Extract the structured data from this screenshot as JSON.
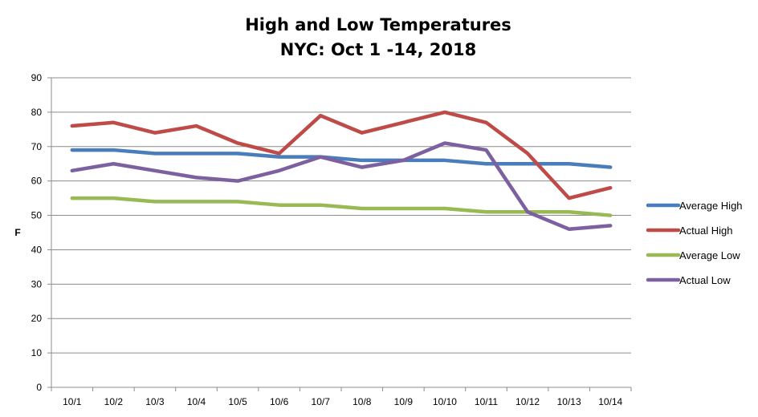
{
  "chart_data": {
    "type": "line",
    "title": "High and Low Temperatures",
    "subtitle": "NYC: Oct 1 -14, 2018",
    "xlabel": "",
    "ylabel": "F",
    "ylim": [
      0,
      90
    ],
    "yticks": [
      0,
      10,
      20,
      30,
      40,
      50,
      60,
      70,
      80,
      90
    ],
    "grid": true,
    "legend_position": "right",
    "categories": [
      "10/1",
      "10/2",
      "10/3",
      "10/4",
      "10/5",
      "10/6",
      "10/7",
      "10/8",
      "10/9",
      "10/10",
      "10/11",
      "10/12",
      "10/13",
      "10/14"
    ],
    "series": [
      {
        "name": "Average High",
        "color": "#4a7ebb",
        "values": [
          69,
          69,
          68,
          68,
          68,
          67,
          67,
          66,
          66,
          66,
          65,
          65,
          65,
          64
        ]
      },
      {
        "name": "Actual High",
        "color": "#be4b48",
        "values": [
          76,
          77,
          74,
          76,
          71,
          68,
          79,
          74,
          77,
          80,
          77,
          68,
          55,
          58
        ]
      },
      {
        "name": "Average Low",
        "color": "#98b954",
        "values": [
          55,
          55,
          54,
          54,
          54,
          53,
          53,
          52,
          52,
          52,
          51,
          51,
          51,
          50
        ]
      },
      {
        "name": "Actual Low",
        "color": "#7d60a0",
        "values": [
          63,
          65,
          63,
          61,
          60,
          63,
          67,
          64,
          66,
          71,
          69,
          51,
          46,
          47
        ]
      }
    ]
  }
}
